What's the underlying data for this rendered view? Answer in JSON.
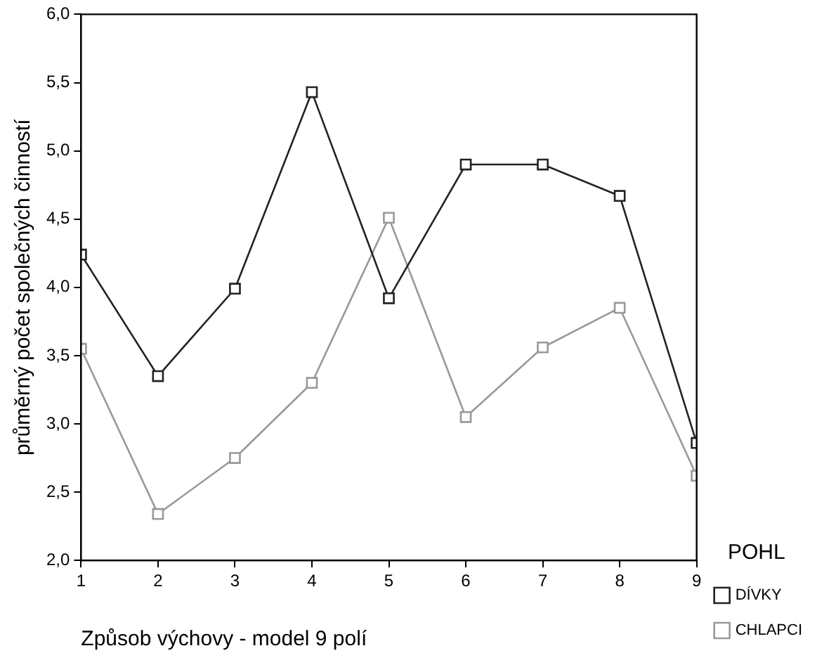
{
  "chart_data": {
    "type": "line",
    "xlabel": "Způsob výchovy - model 9 polí",
    "ylabel": "průměrný počet společných činností",
    "legend_title": "POHL",
    "x": [
      1,
      2,
      3,
      4,
      5,
      6,
      7,
      8,
      9
    ],
    "series": [
      {
        "name": "DÍVKY",
        "color": "#222222",
        "values": [
          4.24,
          3.35,
          3.99,
          5.43,
          3.92,
          4.9,
          4.9,
          4.67,
          2.86
        ]
      },
      {
        "name": "CHLAPCI",
        "color": "#999999",
        "values": [
          3.55,
          2.34,
          2.75,
          3.3,
          4.51,
          3.05,
          3.56,
          3.85,
          2.62
        ]
      }
    ],
    "xlim": [
      1,
      9
    ],
    "xticks": [
      1,
      2,
      3,
      4,
      5,
      6,
      7,
      8,
      9
    ],
    "ylim": [
      2,
      6
    ],
    "yticks": [
      {
        "value": 2,
        "label": "2,0"
      },
      {
        "value": 2.5,
        "label": "2,5"
      },
      {
        "value": 3,
        "label": "3,0"
      },
      {
        "value": 3.5,
        "label": "3,5"
      },
      {
        "value": 4,
        "label": "4,0"
      },
      {
        "value": 4.5,
        "label": "4,5"
      },
      {
        "value": 5,
        "label": "5,0"
      },
      {
        "value": 5.5,
        "label": "5,5"
      },
      {
        "value": 6,
        "label": "6,0"
      }
    ],
    "grid": false,
    "legend": "right",
    "marker": "square",
    "line_style": "solid"
  }
}
